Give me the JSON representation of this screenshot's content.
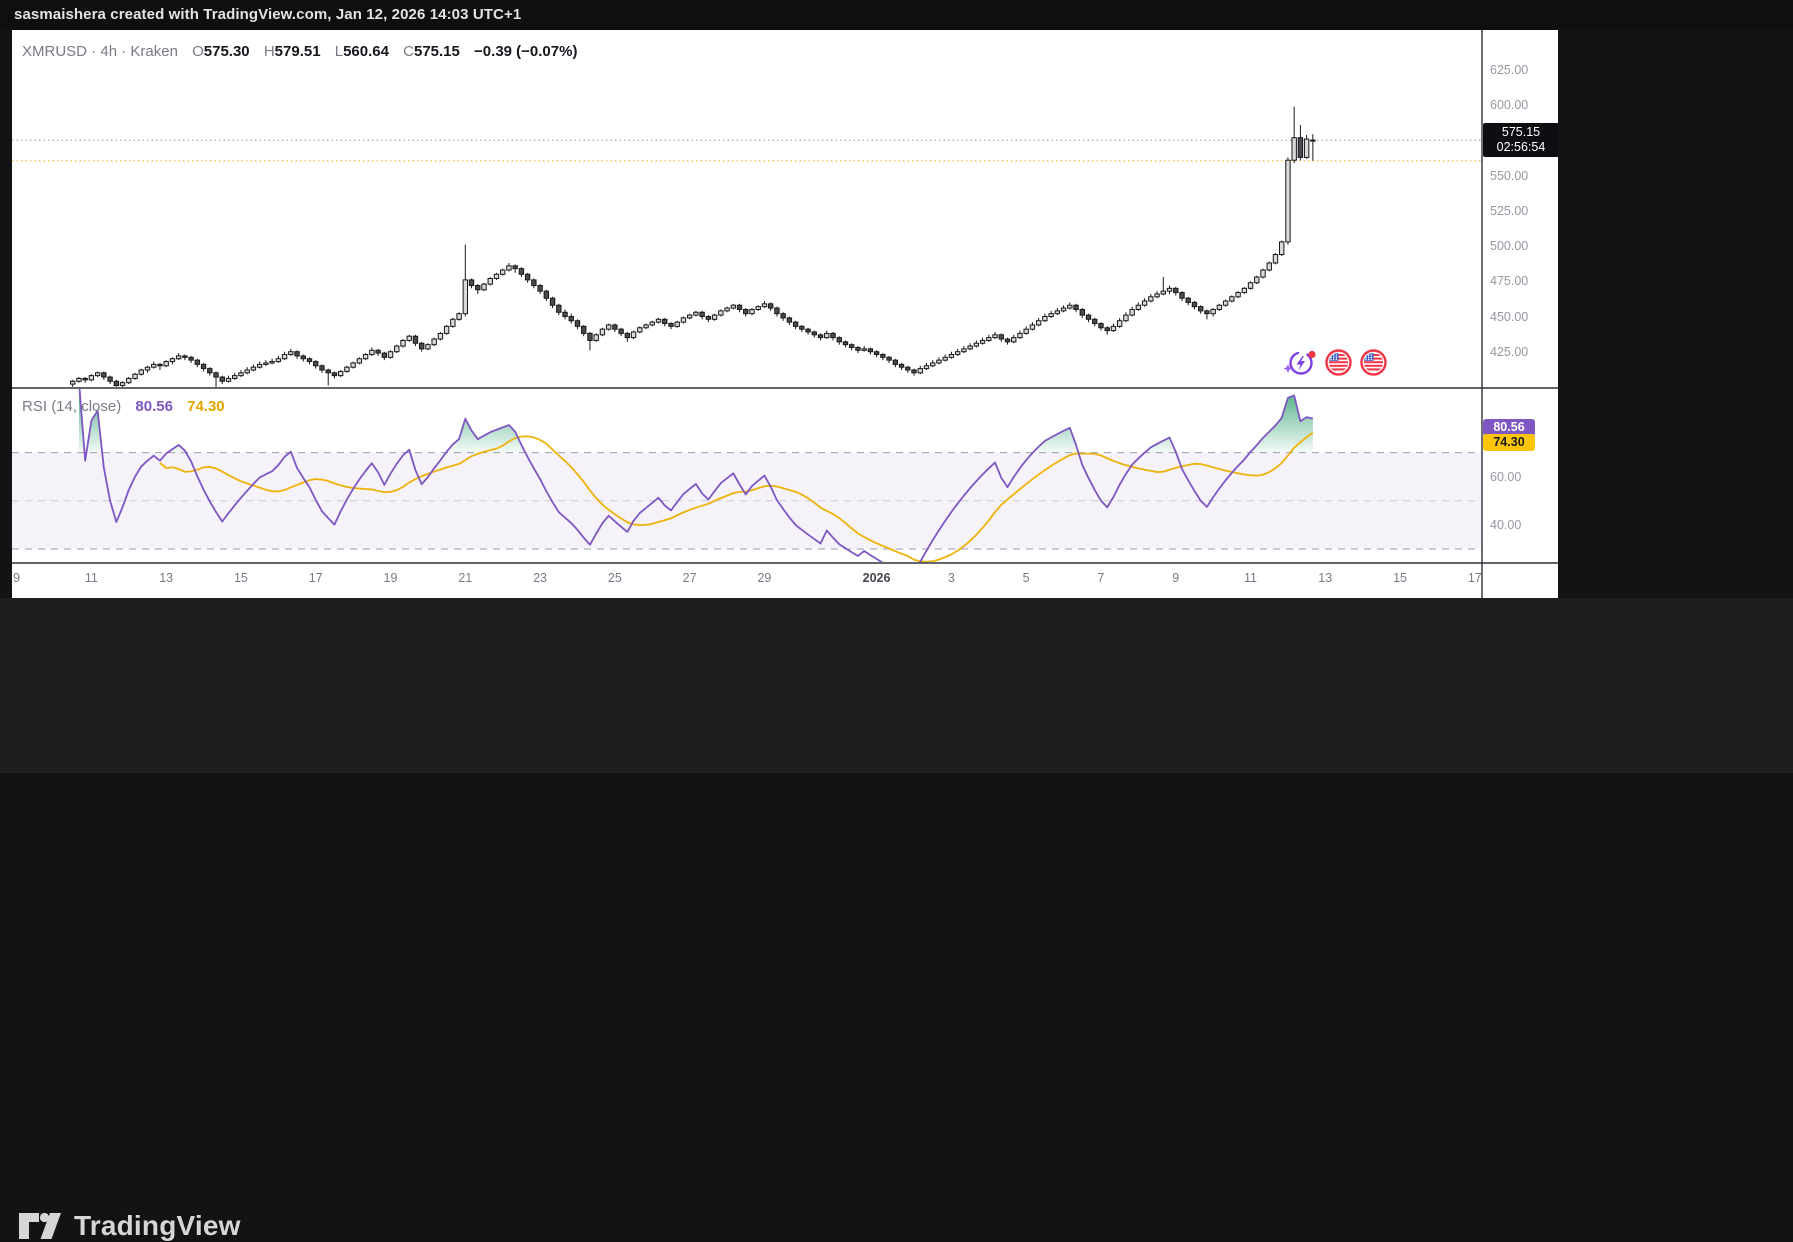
{
  "top_bar": {
    "attribution": "sasmaishera created with TradingView.com, Jan 12, 2026 14:03 UTC+1"
  },
  "legend": {
    "symbol": "XMRUSD",
    "separator": "·",
    "interval": "4h",
    "exchange": "Kraken",
    "open_label": "O",
    "open": "575.30",
    "high_label": "H",
    "high": "579.51",
    "low_label": "L",
    "low": "560.64",
    "close_label": "C",
    "close": "575.15",
    "change": "−0.39 (−0.07%)"
  },
  "price_axis": {
    "labels": [
      "625.00",
      "600.00",
      "550.00",
      "525.00",
      "500.00",
      "475.00",
      "450.00",
      "425.00"
    ],
    "values": [
      625,
      600,
      550,
      525,
      500,
      475,
      450,
      425
    ],
    "last_price_label": "575.15",
    "countdown": "02:56:54"
  },
  "rsi_panel": {
    "title": "RSI",
    "params": "(14, close)",
    "value_label": "80.56",
    "ma_label": "74.30",
    "level_labels": [
      "60.00",
      "40.00"
    ],
    "level_values": [
      60,
      40
    ]
  },
  "icons": {
    "ai_icon": "ai-sparkle-lightning-icon",
    "flag_icon_1": "us-flag-circle-icon",
    "flag_icon_2": "us-flag-circle-icon"
  },
  "footer": {
    "brand": "TradingView"
  },
  "colors": {
    "up_candle": "#d9d9d9",
    "down_candle": "#4b4b4f",
    "candle_border": "#17181c",
    "rsi_line": "#7e57c2",
    "rsi_ma_line": "#eeb30a",
    "rsi_band_fill": "rgba(126,87,194,0.08)",
    "overbought_fill_top": "#2f9e6e",
    "price_dotted_line": "#9598a1",
    "alert_dotted_line": "#f2c141",
    "pane_border": "#2f3238",
    "badge_bg": "#0d0e12"
  },
  "chart_data": {
    "type": "candlestick",
    "title": "XMRUSD · 4h · Kraken",
    "symbol": "XMRUSD",
    "interval": "4h",
    "exchange": "Kraken",
    "start_time": "Dec 10 12:00",
    "candles_per_day": 6,
    "ylim_visible": [
      399,
      653
    ],
    "grid": false,
    "last": {
      "open": 575.3,
      "high": 579.51,
      "low": 560.64,
      "close": 575.15,
      "change": -0.39,
      "change_pct": -0.07
    },
    "price_line_value": 575.15,
    "alert_line_value": 560.64,
    "indicator": {
      "type": "RSI",
      "length": 14,
      "source": "close",
      "value": 80.56,
      "ma_value": 74.3,
      "overbought": 70,
      "midline": 50,
      "oversold": 30,
      "band": [
        30,
        70
      ],
      "ylim_visible": [
        24,
        97
      ]
    },
    "time_axis_days": [
      [
        "9",
        0
      ],
      [
        "11",
        2
      ],
      [
        "13",
        4
      ],
      [
        "15",
        6
      ],
      [
        "17",
        8
      ],
      [
        "19",
        10
      ],
      [
        "21",
        12
      ],
      [
        "23",
        14
      ],
      [
        "25",
        16
      ],
      [
        "27",
        18
      ],
      [
        "29",
        20
      ],
      [
        "2026",
        23
      ],
      [
        "3",
        25
      ],
      [
        "5",
        27
      ],
      [
        "7",
        29
      ],
      [
        "9",
        31
      ],
      [
        "11",
        33
      ],
      [
        "13",
        35
      ],
      [
        "15",
        37
      ],
      [
        "17",
        39
      ]
    ],
    "ohlc": [
      [
        402,
        405,
        400,
        404
      ],
      [
        404,
        407,
        403,
        406
      ],
      [
        406,
        407,
        403,
        405
      ],
      [
        405,
        409,
        404,
        408
      ],
      [
        408,
        411,
        407,
        410
      ],
      [
        410,
        411,
        405,
        407
      ],
      [
        407,
        408,
        402,
        404
      ],
      [
        404,
        405,
        400,
        401
      ],
      [
        401,
        404,
        399,
        403
      ],
      [
        403,
        407,
        402,
        406
      ],
      [
        406,
        410,
        405,
        409
      ],
      [
        409,
        413,
        408,
        412
      ],
      [
        412,
        415,
        410,
        414
      ],
      [
        414,
        418,
        413,
        416
      ],
      [
        416,
        417,
        412,
        415
      ],
      [
        415,
        419,
        414,
        418
      ],
      [
        418,
        421,
        416,
        420
      ],
      [
        420,
        424,
        419,
        422
      ],
      [
        422,
        423,
        419,
        421
      ],
      [
        421,
        422,
        417,
        419
      ],
      [
        419,
        420,
        414,
        416
      ],
      [
        416,
        417,
        411,
        413
      ],
      [
        413,
        414,
        408,
        410
      ],
      [
        410,
        411,
        400,
        407
      ],
      [
        407,
        408,
        402,
        404
      ],
      [
        404,
        408,
        403,
        406
      ],
      [
        406,
        410,
        405,
        408
      ],
      [
        408,
        412,
        407,
        410
      ],
      [
        410,
        414,
        409,
        412
      ],
      [
        412,
        416,
        411,
        414
      ],
      [
        414,
        418,
        413,
        416
      ],
      [
        416,
        419,
        415,
        417
      ],
      [
        417,
        420,
        416,
        418
      ],
      [
        418,
        422,
        417,
        420
      ],
      [
        420,
        425,
        419,
        423
      ],
      [
        423,
        427,
        422,
        425
      ],
      [
        425,
        426,
        420,
        422
      ],
      [
        422,
        423,
        418,
        420
      ],
      [
        420,
        421,
        416,
        418
      ],
      [
        418,
        419,
        413,
        415
      ],
      [
        415,
        416,
        410,
        412
      ],
      [
        412,
        413,
        401,
        410
      ],
      [
        410,
        411,
        406,
        408
      ],
      [
        408,
        412,
        407,
        411
      ],
      [
        411,
        415,
        410,
        414
      ],
      [
        414,
        418,
        413,
        417
      ],
      [
        417,
        421,
        416,
        420
      ],
      [
        420,
        424,
        419,
        423
      ],
      [
        423,
        428,
        422,
        426
      ],
      [
        426,
        427,
        422,
        424
      ],
      [
        424,
        425,
        419,
        421
      ],
      [
        421,
        426,
        420,
        425
      ],
      [
        425,
        430,
        424,
        429
      ],
      [
        429,
        434,
        428,
        433
      ],
      [
        433,
        437,
        432,
        436
      ],
      [
        436,
        437,
        429,
        431
      ],
      [
        431,
        432,
        425,
        427
      ],
      [
        427,
        431,
        426,
        430
      ],
      [
        430,
        435,
        429,
        434
      ],
      [
        434,
        439,
        433,
        438
      ],
      [
        438,
        444,
        437,
        443
      ],
      [
        443,
        449,
        442,
        448
      ],
      [
        448,
        453,
        447,
        452
      ],
      [
        452,
        501,
        450,
        476
      ],
      [
        476,
        477,
        470,
        472
      ],
      [
        472,
        473,
        466,
        469
      ],
      [
        469,
        474,
        468,
        473
      ],
      [
        473,
        478,
        472,
        477
      ],
      [
        477,
        481,
        476,
        480
      ],
      [
        480,
        484,
        479,
        483
      ],
      [
        483,
        488,
        482,
        486
      ],
      [
        486,
        487,
        481,
        484
      ],
      [
        484,
        485,
        478,
        480
      ],
      [
        480,
        481,
        474,
        476
      ],
      [
        476,
        477,
        470,
        472
      ],
      [
        472,
        473,
        466,
        468
      ],
      [
        468,
        469,
        461,
        463
      ],
      [
        463,
        464,
        456,
        458
      ],
      [
        458,
        459,
        451,
        453
      ],
      [
        453,
        455,
        448,
        450
      ],
      [
        450,
        452,
        445,
        447
      ],
      [
        447,
        448,
        441,
        443
      ],
      [
        443,
        444,
        436,
        438
      ],
      [
        438,
        439,
        426,
        433
      ],
      [
        433,
        438,
        432,
        437
      ],
      [
        437,
        442,
        436,
        441
      ],
      [
        441,
        445,
        440,
        444
      ],
      [
        444,
        445,
        439,
        441
      ],
      [
        441,
        442,
        436,
        438
      ],
      [
        438,
        439,
        432,
        435
      ],
      [
        435,
        440,
        434,
        439
      ],
      [
        439,
        443,
        438,
        442
      ],
      [
        442,
        445,
        441,
        444
      ],
      [
        444,
        447,
        443,
        446
      ],
      [
        446,
        449,
        445,
        448
      ],
      [
        448,
        449,
        443,
        445
      ],
      [
        445,
        446,
        441,
        443
      ],
      [
        443,
        447,
        442,
        446
      ],
      [
        446,
        450,
        445,
        449
      ],
      [
        449,
        452,
        448,
        451
      ],
      [
        451,
        454,
        450,
        453
      ],
      [
        453,
        454,
        448,
        450
      ],
      [
        450,
        451,
        446,
        448
      ],
      [
        448,
        452,
        447,
        451
      ],
      [
        451,
        455,
        450,
        454
      ],
      [
        454,
        457,
        453,
        456
      ],
      [
        456,
        459,
        455,
        458
      ],
      [
        458,
        459,
        453,
        455
      ],
      [
        455,
        456,
        450,
        452
      ],
      [
        452,
        456,
        451,
        455
      ],
      [
        455,
        458,
        454,
        457
      ],
      [
        457,
        461,
        456,
        459
      ],
      [
        459,
        460,
        454,
        456
      ],
      [
        456,
        457,
        450,
        452
      ],
      [
        452,
        453,
        447,
        449
      ],
      [
        449,
        450,
        444,
        446
      ],
      [
        446,
        447,
        441,
        443
      ],
      [
        443,
        444,
        439,
        441
      ],
      [
        441,
        442,
        437,
        439
      ],
      [
        439,
        440,
        435,
        437
      ],
      [
        437,
        438,
        433,
        435
      ],
      [
        435,
        440,
        434,
        438
      ],
      [
        438,
        439,
        433,
        435
      ],
      [
        435,
        436,
        430,
        432
      ],
      [
        432,
        433,
        428,
        430
      ],
      [
        430,
        431,
        426,
        428
      ],
      [
        428,
        429,
        424,
        426
      ],
      [
        426,
        429,
        425,
        427
      ],
      [
        427,
        428,
        423,
        425
      ],
      [
        425,
        426,
        421,
        423
      ],
      [
        423,
        424,
        419,
        421
      ],
      [
        421,
        422,
        417,
        419
      ],
      [
        419,
        420,
        414,
        416
      ],
      [
        416,
        417,
        412,
        414
      ],
      [
        414,
        415,
        410,
        412
      ],
      [
        412,
        413,
        408,
        410
      ],
      [
        410,
        415,
        409,
        413
      ],
      [
        413,
        417,
        412,
        415
      ],
      [
        415,
        419,
        414,
        417
      ],
      [
        417,
        421,
        416,
        419
      ],
      [
        419,
        423,
        418,
        421
      ],
      [
        421,
        425,
        420,
        423
      ],
      [
        423,
        427,
        422,
        425
      ],
      [
        425,
        429,
        424,
        427
      ],
      [
        427,
        431,
        426,
        429
      ],
      [
        429,
        433,
        428,
        431
      ],
      [
        431,
        435,
        430,
        433
      ],
      [
        433,
        437,
        432,
        435
      ],
      [
        435,
        439,
        434,
        437
      ],
      [
        437,
        438,
        432,
        434
      ],
      [
        434,
        435,
        430,
        432
      ],
      [
        432,
        437,
        431,
        435
      ],
      [
        435,
        440,
        434,
        438
      ],
      [
        438,
        443,
        437,
        441
      ],
      [
        441,
        446,
        440,
        444
      ],
      [
        444,
        449,
        443,
        447
      ],
      [
        447,
        452,
        446,
        450
      ],
      [
        450,
        454,
        449,
        452
      ],
      [
        452,
        456,
        451,
        454
      ],
      [
        454,
        458,
        453,
        456
      ],
      [
        456,
        460,
        455,
        458
      ],
      [
        458,
        459,
        453,
        455
      ],
      [
        455,
        456,
        449,
        451
      ],
      [
        451,
        452,
        446,
        448
      ],
      [
        448,
        449,
        443,
        445
      ],
      [
        445,
        446,
        440,
        442
      ],
      [
        442,
        443,
        437,
        440
      ],
      [
        440,
        445,
        439,
        443
      ],
      [
        443,
        449,
        442,
        447
      ],
      [
        447,
        453,
        446,
        451
      ],
      [
        451,
        457,
        450,
        455
      ],
      [
        455,
        460,
        454,
        458
      ],
      [
        458,
        463,
        457,
        461
      ],
      [
        461,
        466,
        460,
        464
      ],
      [
        464,
        468,
        463,
        466
      ],
      [
        466,
        478,
        465,
        468
      ],
      [
        468,
        472,
        466,
        470
      ],
      [
        470,
        471,
        465,
        467
      ],
      [
        467,
        468,
        461,
        463
      ],
      [
        463,
        464,
        458,
        460
      ],
      [
        460,
        461,
        455,
        457
      ],
      [
        457,
        458,
        452,
        454
      ],
      [
        454,
        455,
        448,
        452
      ],
      [
        452,
        456,
        450,
        455
      ],
      [
        455,
        459,
        454,
        458
      ],
      [
        458,
        462,
        457,
        461
      ],
      [
        461,
        465,
        460,
        464
      ],
      [
        464,
        468,
        463,
        467
      ],
      [
        467,
        471,
        466,
        470
      ],
      [
        470,
        475,
        469,
        474
      ],
      [
        474,
        479,
        473,
        478
      ],
      [
        478,
        484,
        477,
        483
      ],
      [
        483,
        489,
        482,
        488
      ],
      [
        488,
        495,
        487,
        494
      ],
      [
        494,
        504,
        493,
        503
      ],
      [
        503,
        563,
        501,
        561
      ],
      [
        561,
        599,
        559,
        577
      ],
      [
        577,
        586,
        561,
        563
      ],
      [
        563,
        579,
        562,
        576
      ],
      [
        575.3,
        579.51,
        560.64,
        575.15
      ]
    ]
  }
}
